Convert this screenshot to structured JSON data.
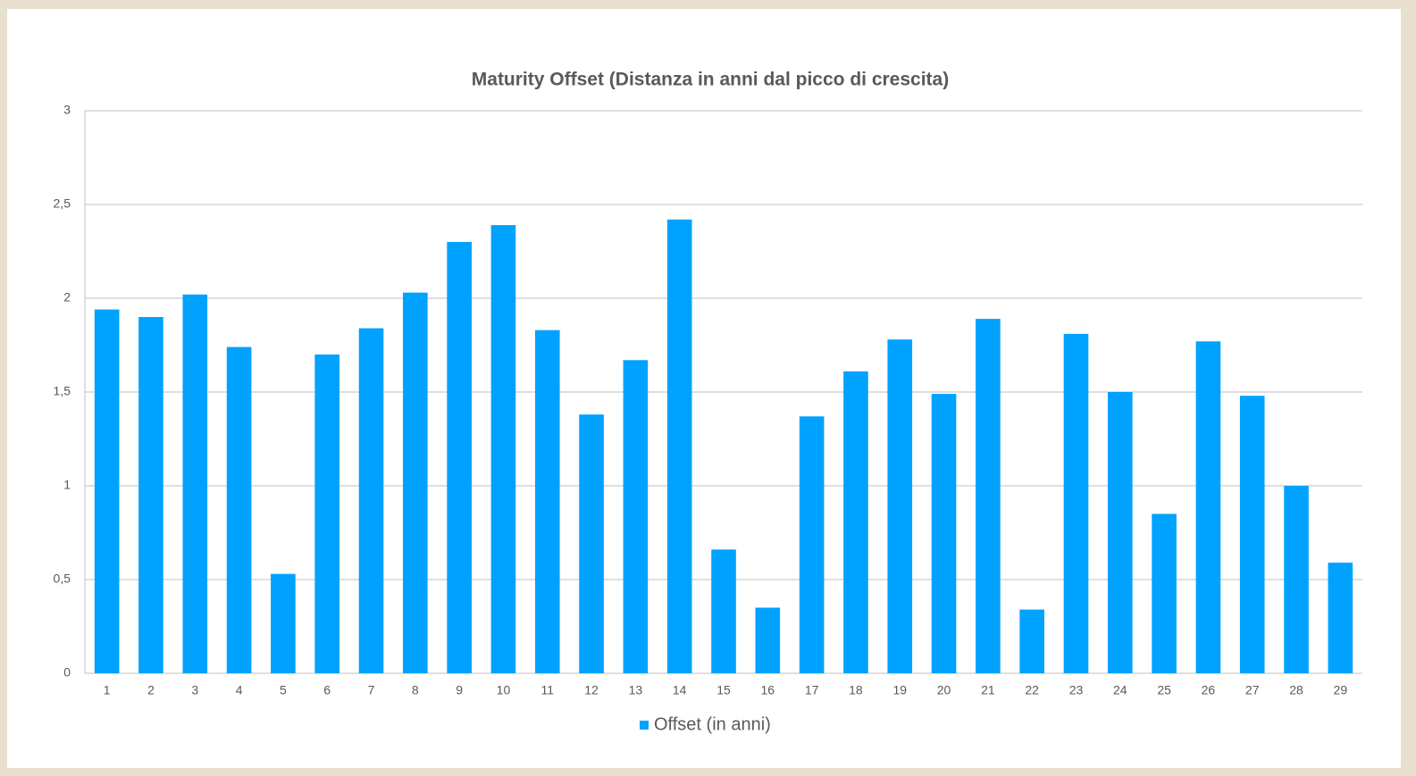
{
  "chart_data": {
    "type": "bar",
    "title": "Maturity Offset (Distanza in anni dal picco di crescita)",
    "categories": [
      "1",
      "2",
      "3",
      "4",
      "5",
      "6",
      "7",
      "8",
      "9",
      "10",
      "11",
      "12",
      "13",
      "14",
      "15",
      "16",
      "17",
      "18",
      "19",
      "20",
      "21",
      "22",
      "23",
      "24",
      "25",
      "26",
      "27",
      "28",
      "29"
    ],
    "series": [
      {
        "name": "Offset (in anni)",
        "color": "#00a2ff",
        "values": [
          1.94,
          1.9,
          2.02,
          1.74,
          0.53,
          1.7,
          1.84,
          2.03,
          2.3,
          2.39,
          1.83,
          1.38,
          1.67,
          2.42,
          0.66,
          0.35,
          1.37,
          1.61,
          1.78,
          1.49,
          1.89,
          0.34,
          1.81,
          1.5,
          0.85,
          1.77,
          1.48,
          1.0,
          0.59
        ]
      }
    ],
    "ylim": [
      0,
      3
    ],
    "yticks": [
      0,
      {
        "value": 0.5,
        "label": "0,5"
      },
      1,
      {
        "value": 1.5,
        "label": "1,5"
      },
      2,
      {
        "value": 2.5,
        "label": "2,5"
      },
      3
    ],
    "grid": true,
    "legend": "bottom"
  }
}
